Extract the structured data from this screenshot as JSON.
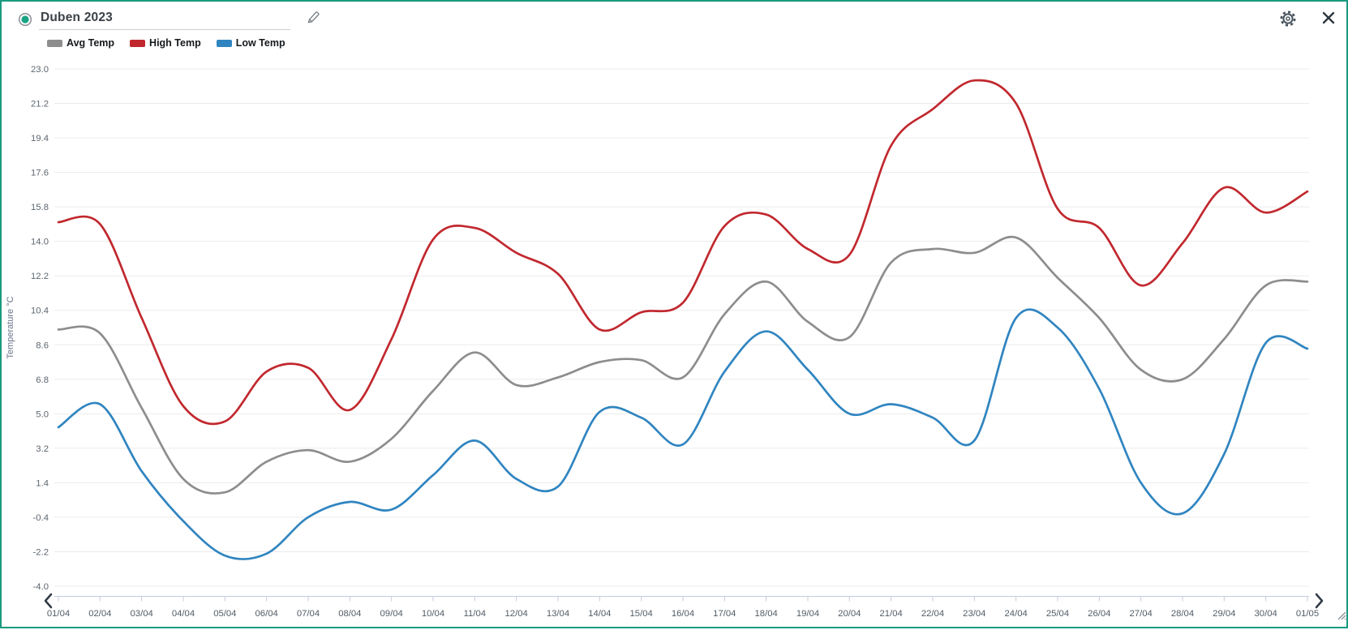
{
  "header": {
    "title": "Duben 2023",
    "icons": [
      "radio-selected-icon",
      "edit-pencil-icon",
      "settings-gear-icon",
      "close-icon"
    ]
  },
  "legend": [
    {
      "label": "Avg Temp",
      "color": "#8d8d8d"
    },
    {
      "label": "High Temp",
      "color": "#c1282e"
    },
    {
      "label": "Low Temp",
      "color": "#3085c0"
    }
  ],
  "chart_data": {
    "type": "line",
    "title": "Duben 2023",
    "xlabel": "",
    "ylabel": "Temperature °C",
    "ylim": [
      -4.0,
      23.0
    ],
    "grid": true,
    "legend_position": "top-left",
    "y_ticks": [
      23.0,
      21.2,
      19.4,
      17.6,
      15.8,
      14.0,
      12.2,
      10.4,
      8.6,
      6.8,
      5.0,
      3.2,
      1.4,
      -0.4,
      -2.2,
      -4.0
    ],
    "x": [
      "01/04",
      "02/04",
      "03/04",
      "04/04",
      "05/04",
      "06/04",
      "07/04",
      "08/04",
      "09/04",
      "10/04",
      "11/04",
      "12/04",
      "13/04",
      "14/04",
      "15/04",
      "16/04",
      "17/04",
      "18/04",
      "19/04",
      "20/04",
      "21/04",
      "22/04",
      "23/04",
      "24/04",
      "25/04",
      "26/04",
      "27/04",
      "28/04",
      "29/04",
      "30/04",
      "01/05"
    ],
    "series": [
      {
        "name": "Avg Temp",
        "color": "#8d8d8d",
        "values": [
          9.4,
          9.2,
          5.3,
          1.6,
          0.9,
          2.5,
          3.1,
          2.5,
          3.7,
          6.2,
          8.2,
          6.5,
          6.9,
          7.7,
          7.8,
          6.9,
          10.2,
          11.9,
          9.8,
          9.0,
          12.9,
          13.6,
          13.4,
          14.2,
          12.1,
          10.0,
          7.3,
          6.8,
          8.9,
          11.7,
          11.9
        ]
      },
      {
        "name": "High Temp",
        "color": "#c1282e",
        "values": [
          15.0,
          14.9,
          10.0,
          5.4,
          4.6,
          7.2,
          7.4,
          5.2,
          8.9,
          14.1,
          14.7,
          13.4,
          12.3,
          9.4,
          10.3,
          10.8,
          14.8,
          15.4,
          13.6,
          13.3,
          19.0,
          20.9,
          22.4,
          21.2,
          15.7,
          14.7,
          11.7,
          13.9,
          16.8,
          15.5,
          16.6
        ]
      },
      {
        "name": "Low Temp",
        "color": "#3085c0",
        "values": [
          4.3,
          5.5,
          2.0,
          -0.6,
          -2.4,
          -2.3,
          -0.4,
          0.4,
          0.0,
          1.8,
          3.6,
          1.6,
          1.2,
          5.1,
          4.8,
          3.4,
          7.2,
          9.3,
          7.3,
          5.0,
          5.5,
          4.8,
          3.6,
          10.0,
          9.5,
          6.3,
          1.4,
          -0.2,
          2.9,
          8.7,
          8.4
        ]
      }
    ]
  },
  "nav": {
    "left": "chevron-left",
    "right": "chevron-right",
    "resize": "resize-handle"
  }
}
